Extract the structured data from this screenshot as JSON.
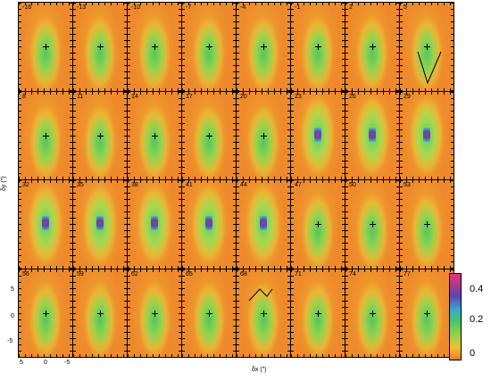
{
  "figure": {
    "panel_labels": [
      "-16",
      "-13",
      "-10",
      "-7",
      "-4",
      "-1",
      "2",
      "5",
      "8",
      "11",
      "14",
      "17",
      "20",
      "23",
      "26",
      "29",
      "32",
      "35",
      "38",
      "41",
      "44",
      "47",
      "50",
      "53",
      "56",
      "59",
      "62",
      "65",
      "68",
      "71",
      "74",
      "77"
    ],
    "y_axis": {
      "label": "δy (″)",
      "ticks": [
        "5",
        "0",
        "-5"
      ]
    },
    "x_axis": {
      "label": "δx (″)",
      "ticks": [
        "5",
        "0",
        "-5"
      ]
    },
    "colorbar": {
      "ticks": [
        "0.4",
        "0.2",
        "0"
      ],
      "colors": [
        "#ee7a2a",
        "#eec03a",
        "#8fd24a",
        "#45c46a",
        "#3aa9d0",
        "#5b44b0",
        "#e8337a"
      ]
    },
    "arrow_panels": [
      "5",
      "68"
    ]
  }
}
